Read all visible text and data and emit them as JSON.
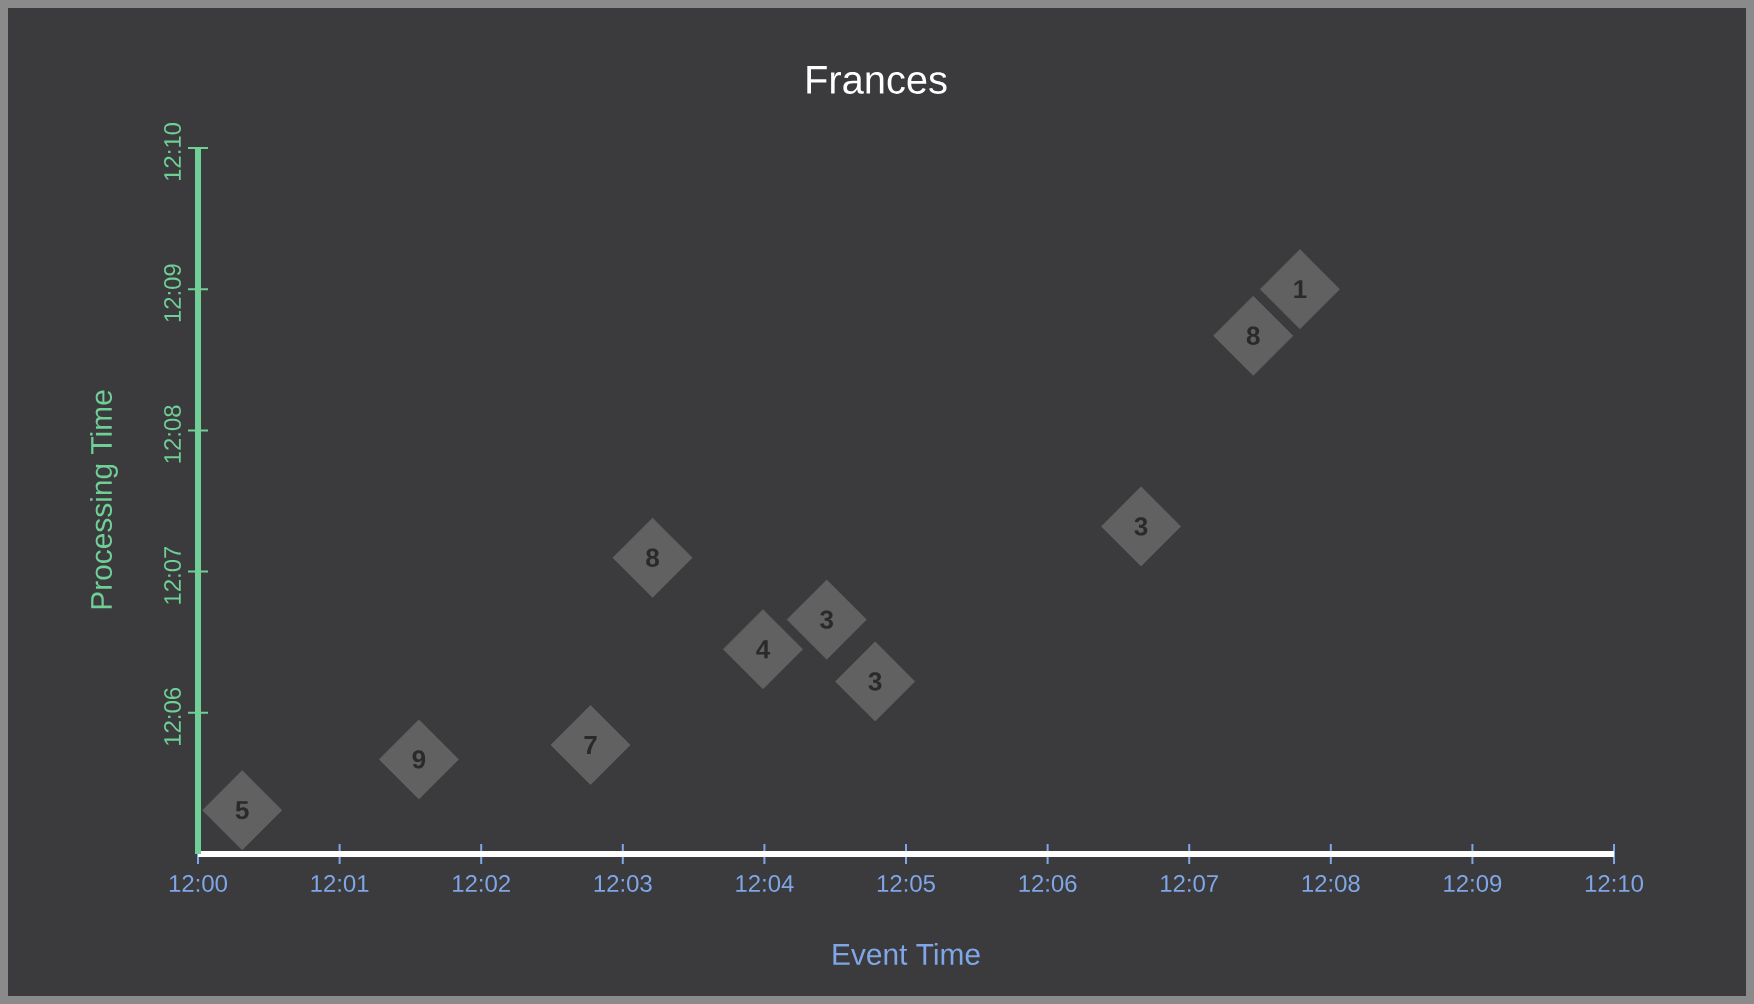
{
  "chart_data": {
    "type": "scatter",
    "title": "Frances",
    "xlabel": "Event Time",
    "ylabel": "Processing Time",
    "marker": "diamond",
    "x": [
      12.0052,
      12.026,
      12.0462,
      12.0535,
      12.0665,
      12.074,
      12.0797,
      12.111,
      12.1242,
      12.1297
    ],
    "series": [
      {
        "color": "#616161",
        "values": [
          12.0885,
          12.0945,
          12.0962,
          12.1183,
          12.1075,
          12.111,
          12.1037,
          12.122,
          12.1445,
          12.15
        ]
      }
    ],
    "xlim": [
      12.0,
      12.166667
    ],
    "ylim": [
      12.083333,
      12.166667
    ],
    "xticks": [
      {
        "value": 12.0,
        "label": "12:00"
      },
      {
        "value": 12.016667,
        "label": "12:01"
      },
      {
        "value": 12.033333,
        "label": "12:02"
      },
      {
        "value": 12.05,
        "label": "12:03"
      },
      {
        "value": 12.066667,
        "label": "12:04"
      },
      {
        "value": 12.083333,
        "label": "12:05"
      },
      {
        "value": 12.1,
        "label": "12:06"
      },
      {
        "value": 12.116667,
        "label": "12:07"
      },
      {
        "value": 12.133333,
        "label": "12:08"
      },
      {
        "value": 12.15,
        "label": "12:09"
      },
      {
        "value": 12.166667,
        "label": "12:10"
      }
    ],
    "yticks": [
      {
        "value": 12.1,
        "label": "12:06"
      },
      {
        "value": 12.116667,
        "label": "12:07"
      },
      {
        "value": 12.133333,
        "label": "12:08"
      },
      {
        "value": 12.15,
        "label": "12:09"
      },
      {
        "value": 12.166667,
        "label": "12:10"
      }
    ],
    "annotations": [
      {
        "text": "5",
        "x": 12.0052,
        "y": 12.0885
      },
      {
        "text": "9",
        "x": 12.026,
        "y": 12.0945
      },
      {
        "text": "7",
        "x": 12.0462,
        "y": 12.0962
      },
      {
        "text": "8",
        "x": 12.0535,
        "y": 12.1183
      },
      {
        "text": "4",
        "x": 12.0665,
        "y": 12.1075
      },
      {
        "text": "3",
        "x": 12.074,
        "y": 12.111
      },
      {
        "text": "3",
        "x": 12.0797,
        "y": 12.1037
      },
      {
        "text": "3",
        "x": 12.111,
        "y": 12.122
      },
      {
        "text": "8",
        "x": 12.1242,
        "y": 12.1445
      },
      {
        "text": "1",
        "x": 12.1297,
        "y": 12.15
      }
    ]
  }
}
